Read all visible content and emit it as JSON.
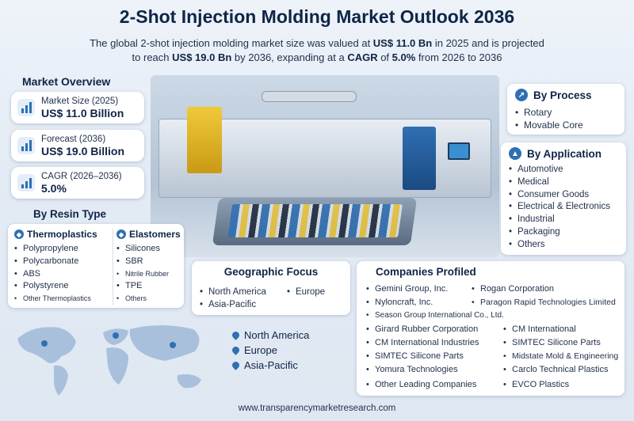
{
  "header": {
    "title": "2-Shot Injection Molding Market Outlook 2036",
    "subtitle_line1_a": "The global 2-shot injection molding market size was valued at ",
    "subtitle_line1_b": "US$ 11.0 Bn",
    "subtitle_line1_c": " in 2025 and is projected",
    "subtitle_line2_a": "to reach ",
    "subtitle_line2_b": "US$ 19.0 Bn",
    "subtitle_line2_c": " by 2036, expanding at a ",
    "subtitle_line2_d": "CAGR",
    "subtitle_line2_e": " of ",
    "subtitle_line2_f": "5.0%",
    "subtitle_line2_g": " from 2026 to 2036"
  },
  "market_overview": {
    "title": "Market Overview",
    "cards": [
      {
        "label": "Market Size (2025)",
        "value": "US$ 11.0 Billion",
        "icon": "bar-chart-icon"
      },
      {
        "label": "Forecast (2036)",
        "value": "US$ 19.0 Billion",
        "icon": "bar-chart-icon"
      },
      {
        "label": "CAGR (2026–2036)",
        "value": "5.0%",
        "icon": "growth-chart-icon"
      }
    ]
  },
  "by_process": {
    "title": "By Process",
    "items": [
      "Rotary",
      "Movable Core"
    ]
  },
  "by_application": {
    "title": "By Application",
    "items": [
      "Automotive",
      "Medical",
      "Consumer Goods",
      "Electrical & Electronics",
      "Industrial",
      "Packaging",
      "Others"
    ]
  },
  "by_resin": {
    "title": "By Resin Type",
    "thermoplastics": {
      "title": "Thermoplastics",
      "items": [
        "Polypropylene",
        "Polycarbonate",
        "ABS",
        "Polystyrene",
        "Other Thermoplastics"
      ]
    },
    "elastomers": {
      "title": "Elastomers",
      "items": [
        "Silicones",
        "SBR",
        "Nitrile Rubber",
        "TPE",
        "Others"
      ]
    }
  },
  "geographic_focus": {
    "title": "Geographic Focus",
    "items": [
      "North America",
      "Europe",
      "Asia-Pacific"
    ]
  },
  "map_legend": [
    "North America",
    "Europe",
    "Asia-Pacific"
  ],
  "companies": {
    "title": "Companies Profiled",
    "items": [
      "Gemini Group, Inc.",
      "Rogan Corporation",
      "Nyloncraft, Inc.",
      "Paragon Rapid Technologies Limited",
      "Season Group International Co., Ltd.",
      "Girard Rubber Corporation",
      "CM International",
      "CM International Industries",
      "SIMTEC Silicone Parts",
      "SIMTEC Silicone Parts",
      "Midstate Mold & Engineering",
      "Yomura Technologies",
      "Carclo Technical Plastics",
      "Other Leading Companies",
      "EVCO Plastics"
    ]
  },
  "footer": {
    "url": "www.transparencymarketresearch.com"
  },
  "colors": {
    "primary": "#0f2547",
    "accent": "#2f6fb3"
  }
}
